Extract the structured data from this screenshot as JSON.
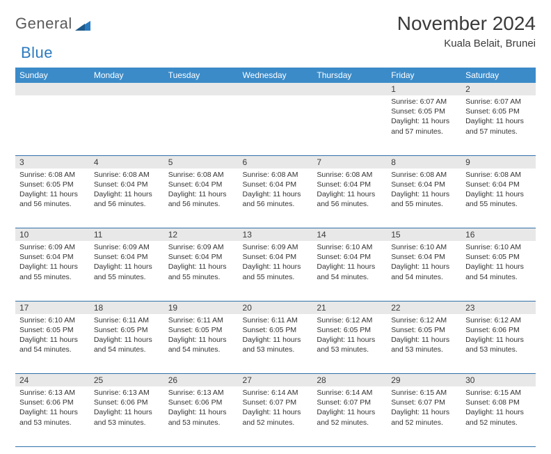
{
  "brand": {
    "word1": "General",
    "word2": "Blue"
  },
  "title": "November 2024",
  "location": "Kuala Belait, Brunei",
  "colors": {
    "header_bg": "#3b8bc9",
    "header_text": "#ffffff",
    "daynum_bg": "#e8e8e8",
    "rule": "#2f6fa8",
    "body_text": "#333333",
    "title_text": "#3a3a3a",
    "logo_gray": "#5a5a5a",
    "logo_blue": "#2a7abf"
  },
  "dayHeaders": [
    "Sunday",
    "Monday",
    "Tuesday",
    "Wednesday",
    "Thursday",
    "Friday",
    "Saturday"
  ],
  "weeks": [
    [
      null,
      null,
      null,
      null,
      null,
      {
        "n": "1",
        "sr": "6:07 AM",
        "ss": "6:05 PM",
        "dl": "11 hours and 57 minutes."
      },
      {
        "n": "2",
        "sr": "6:07 AM",
        "ss": "6:05 PM",
        "dl": "11 hours and 57 minutes."
      }
    ],
    [
      {
        "n": "3",
        "sr": "6:08 AM",
        "ss": "6:05 PM",
        "dl": "11 hours and 56 minutes."
      },
      {
        "n": "4",
        "sr": "6:08 AM",
        "ss": "6:04 PM",
        "dl": "11 hours and 56 minutes."
      },
      {
        "n": "5",
        "sr": "6:08 AM",
        "ss": "6:04 PM",
        "dl": "11 hours and 56 minutes."
      },
      {
        "n": "6",
        "sr": "6:08 AM",
        "ss": "6:04 PM",
        "dl": "11 hours and 56 minutes."
      },
      {
        "n": "7",
        "sr": "6:08 AM",
        "ss": "6:04 PM",
        "dl": "11 hours and 56 minutes."
      },
      {
        "n": "8",
        "sr": "6:08 AM",
        "ss": "6:04 PM",
        "dl": "11 hours and 55 minutes."
      },
      {
        "n": "9",
        "sr": "6:08 AM",
        "ss": "6:04 PM",
        "dl": "11 hours and 55 minutes."
      }
    ],
    [
      {
        "n": "10",
        "sr": "6:09 AM",
        "ss": "6:04 PM",
        "dl": "11 hours and 55 minutes."
      },
      {
        "n": "11",
        "sr": "6:09 AM",
        "ss": "6:04 PM",
        "dl": "11 hours and 55 minutes."
      },
      {
        "n": "12",
        "sr": "6:09 AM",
        "ss": "6:04 PM",
        "dl": "11 hours and 55 minutes."
      },
      {
        "n": "13",
        "sr": "6:09 AM",
        "ss": "6:04 PM",
        "dl": "11 hours and 55 minutes."
      },
      {
        "n": "14",
        "sr": "6:10 AM",
        "ss": "6:04 PM",
        "dl": "11 hours and 54 minutes."
      },
      {
        "n": "15",
        "sr": "6:10 AM",
        "ss": "6:04 PM",
        "dl": "11 hours and 54 minutes."
      },
      {
        "n": "16",
        "sr": "6:10 AM",
        "ss": "6:05 PM",
        "dl": "11 hours and 54 minutes."
      }
    ],
    [
      {
        "n": "17",
        "sr": "6:10 AM",
        "ss": "6:05 PM",
        "dl": "11 hours and 54 minutes."
      },
      {
        "n": "18",
        "sr": "6:11 AM",
        "ss": "6:05 PM",
        "dl": "11 hours and 54 minutes."
      },
      {
        "n": "19",
        "sr": "6:11 AM",
        "ss": "6:05 PM",
        "dl": "11 hours and 54 minutes."
      },
      {
        "n": "20",
        "sr": "6:11 AM",
        "ss": "6:05 PM",
        "dl": "11 hours and 53 minutes."
      },
      {
        "n": "21",
        "sr": "6:12 AM",
        "ss": "6:05 PM",
        "dl": "11 hours and 53 minutes."
      },
      {
        "n": "22",
        "sr": "6:12 AM",
        "ss": "6:05 PM",
        "dl": "11 hours and 53 minutes."
      },
      {
        "n": "23",
        "sr": "6:12 AM",
        "ss": "6:06 PM",
        "dl": "11 hours and 53 minutes."
      }
    ],
    [
      {
        "n": "24",
        "sr": "6:13 AM",
        "ss": "6:06 PM",
        "dl": "11 hours and 53 minutes."
      },
      {
        "n": "25",
        "sr": "6:13 AM",
        "ss": "6:06 PM",
        "dl": "11 hours and 53 minutes."
      },
      {
        "n": "26",
        "sr": "6:13 AM",
        "ss": "6:06 PM",
        "dl": "11 hours and 53 minutes."
      },
      {
        "n": "27",
        "sr": "6:14 AM",
        "ss": "6:07 PM",
        "dl": "11 hours and 52 minutes."
      },
      {
        "n": "28",
        "sr": "6:14 AM",
        "ss": "6:07 PM",
        "dl": "11 hours and 52 minutes."
      },
      {
        "n": "29",
        "sr": "6:15 AM",
        "ss": "6:07 PM",
        "dl": "11 hours and 52 minutes."
      },
      {
        "n": "30",
        "sr": "6:15 AM",
        "ss": "6:08 PM",
        "dl": "11 hours and 52 minutes."
      }
    ]
  ],
  "labels": {
    "sunrise": "Sunrise:",
    "sunset": "Sunset:",
    "daylight": "Daylight:"
  }
}
